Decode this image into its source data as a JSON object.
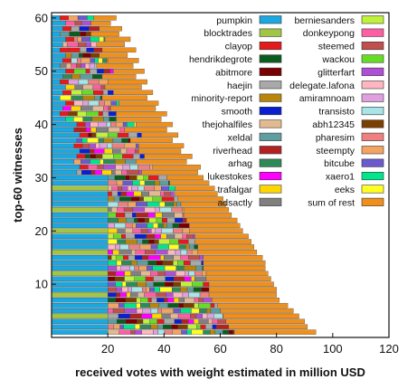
{
  "chart_data": {
    "type": "bar",
    "orientation": "horizontal",
    "stacked": true,
    "xlabel": "received votes with weight estimated in million USD",
    "ylabel": "top-60 witnesses",
    "xlim": [
      0,
      120
    ],
    "ylim": [
      0,
      61
    ],
    "xticks": [
      20,
      40,
      60,
      80,
      100,
      120
    ],
    "yticks": [
      10,
      20,
      30,
      40,
      50,
      60
    ],
    "grid": false,
    "legend_position": "top-right",
    "n_witnesses": 60,
    "series": [
      {
        "name": "pumpkin",
        "color": "#1ba8e0"
      },
      {
        "name": "blocktrades",
        "color": "#a2c644"
      },
      {
        "name": "clayop",
        "color": "#e41a1c"
      },
      {
        "name": "hendrikdegrote",
        "color": "#0d5c1f"
      },
      {
        "name": "abitmore",
        "color": "#7a0000"
      },
      {
        "name": "haejin",
        "color": "#a9a9a9"
      },
      {
        "name": "minority-report",
        "color": "#b8860b"
      },
      {
        "name": "smooth",
        "color": "#0a1fd0"
      },
      {
        "name": "thejohalfiles",
        "color": "#e3b98f"
      },
      {
        "name": "xeldal",
        "color": "#5f9ea0"
      },
      {
        "name": "riverhead",
        "color": "#b22222"
      },
      {
        "name": "arhag",
        "color": "#2e8b57"
      },
      {
        "name": "lukestokes",
        "color": "#ff00ff"
      },
      {
        "name": "trafalgar",
        "color": "#ffd700"
      },
      {
        "name": "adsactly",
        "color": "#808080"
      },
      {
        "name": "berniesanders",
        "color": "#c1f23a"
      },
      {
        "name": "donkeypong",
        "color": "#ff5fa2"
      },
      {
        "name": "steemed",
        "color": "#c0504d"
      },
      {
        "name": "wackou",
        "color": "#66dd22"
      },
      {
        "name": "glitterfart",
        "color": "#b04fd6"
      },
      {
        "name": "delegate.lafona",
        "color": "#ffb6c1"
      },
      {
        "name": "amiramnoam",
        "color": "#e0a0e0"
      },
      {
        "name": "transisto",
        "color": "#a8e4e8"
      },
      {
        "name": "abh12345",
        "color": "#7b3f00"
      },
      {
        "name": "pharesim",
        "color": "#f08080"
      },
      {
        "name": "steempty",
        "color": "#f4a460"
      },
      {
        "name": "bitcube",
        "color": "#6a5acd"
      },
      {
        "name": "xaero1",
        "color": "#00e68a"
      },
      {
        "name": "eeks",
        "color": "#ffff22"
      },
      {
        "name": "sum of rest",
        "color": "#f0901c"
      }
    ],
    "totals": [
      94,
      91,
      90,
      88,
      86,
      84,
      81,
      80,
      80,
      79,
      78,
      77,
      76,
      76,
      75,
      73,
      72,
      71,
      70,
      68,
      67,
      66,
      64,
      63,
      62,
      61,
      59,
      58,
      56,
      54,
      52,
      50,
      48,
      47,
      46,
      44,
      43,
      42,
      41,
      40,
      39,
      38,
      37,
      35,
      34,
      33,
      32,
      31,
      30,
      30,
      29,
      28,
      27,
      27,
      26,
      25,
      24,
      22,
      21,
      20
    ]
  }
}
